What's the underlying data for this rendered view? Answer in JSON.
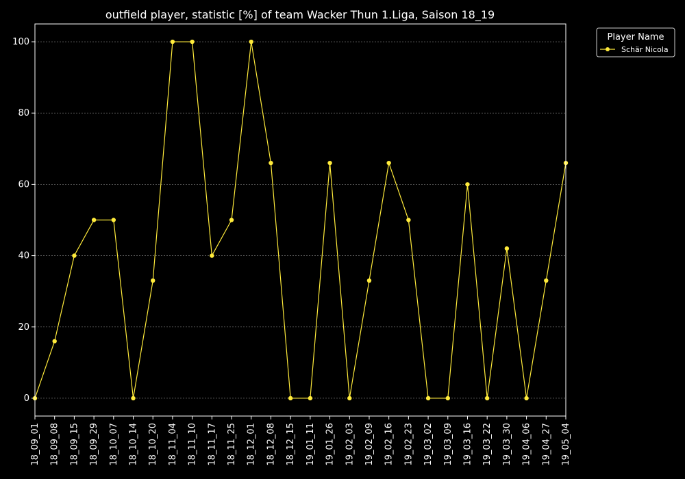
{
  "chart_data": {
    "type": "line",
    "title": "outfield player, statistic [%] of team Wacker Thun 1.Liga, Saison 18_19",
    "xlabel": "",
    "ylabel": "",
    "ylim": [
      -5,
      105
    ],
    "yticks": [
      0,
      20,
      40,
      60,
      80,
      100
    ],
    "grid": true,
    "legend": {
      "title": "Player Name",
      "placement": "outside-top-right"
    },
    "categories": [
      "18_09_01",
      "18_09_08",
      "18_09_15",
      "18_09_29",
      "18_10_07",
      "18_10_14",
      "18_10_20",
      "18_11_04",
      "18_11_10",
      "18_11_17",
      "18_11_25",
      "18_12_01",
      "18_12_08",
      "18_12_15",
      "19_01_11",
      "19_01_26",
      "19_02_03",
      "19_02_09",
      "19_02_16",
      "19_02_23",
      "19_03_02",
      "19_03_09",
      "19_03_16",
      "19_03_22",
      "19_03_30",
      "19_04_06",
      "19_04_27",
      "19_05_04"
    ],
    "series": [
      {
        "name": "Schär Nicola",
        "color": "#ffeb3b",
        "values": [
          0,
          16,
          40,
          50,
          50,
          0,
          33,
          100,
          100,
          40,
          50,
          100,
          66,
          0,
          0,
          66,
          0,
          33,
          66,
          50,
          0,
          0,
          60,
          0,
          42,
          0,
          33,
          66
        ]
      }
    ],
    "colors": {
      "background": "#000000",
      "axes": "#ffffff",
      "grid": "#888888"
    }
  }
}
